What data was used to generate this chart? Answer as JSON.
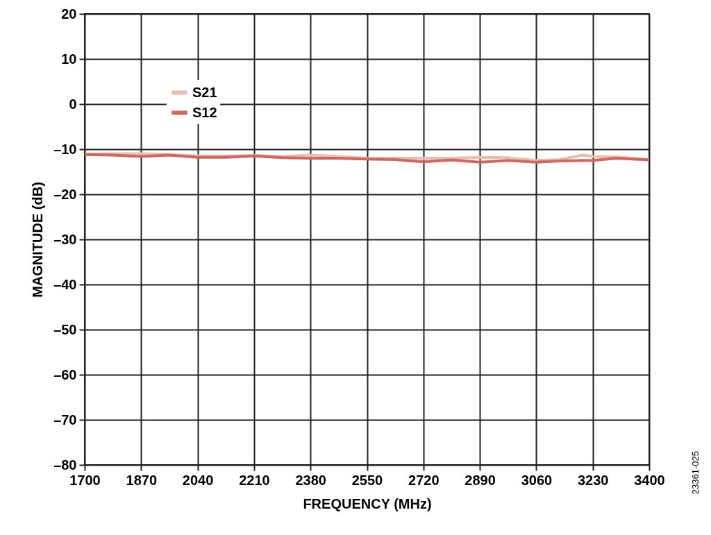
{
  "chart_data": {
    "type": "line",
    "xlabel": "FREQUENCY (MHz)",
    "ylabel": "MAGNITUDE (dB)",
    "x": [
      1700,
      1785,
      1870,
      1955,
      2040,
      2125,
      2210,
      2295,
      2380,
      2465,
      2550,
      2635,
      2720,
      2805,
      2890,
      2975,
      3060,
      3130,
      3200,
      3230,
      3300,
      3400
    ],
    "series": [
      {
        "name": "S21",
        "color": "#ebbcb0",
        "values": [
          -11.1,
          -11.0,
          -11.0,
          -11.2,
          -11.5,
          -11.5,
          -11.4,
          -11.6,
          -11.3,
          -11.6,
          -12.0,
          -12.0,
          -12.0,
          -12.0,
          -11.8,
          -11.9,
          -12.5,
          -12.3,
          -11.3,
          -11.6,
          -11.7,
          -12.3
        ]
      },
      {
        "name": "S12",
        "color": "#cc6860",
        "values": [
          -11.2,
          -11.3,
          -11.6,
          -11.3,
          -11.8,
          -11.8,
          -11.5,
          -11.9,
          -12.0,
          -12.0,
          -12.2,
          -12.3,
          -12.8,
          -12.4,
          -12.9,
          -12.5,
          -12.9,
          -12.6,
          -12.5,
          -12.5,
          -12.0,
          -12.4
        ]
      }
    ],
    "xlim": [
      1700,
      3400
    ],
    "xticks": [
      1700,
      1870,
      2040,
      2210,
      2380,
      2550,
      2720,
      2890,
      3060,
      3230,
      3400
    ],
    "ylim": [
      -80,
      20
    ],
    "yticks": [
      {
        "value": -80,
        "label": "–80"
      },
      {
        "value": -70,
        "label": "–70"
      },
      {
        "value": -60,
        "label": "–60"
      },
      {
        "value": -50,
        "label": "–50"
      },
      {
        "value": -40,
        "label": "–40"
      },
      {
        "value": -30,
        "label": "–30"
      },
      {
        "value": -20,
        "label": "–20"
      },
      {
        "value": -10,
        "label": "–10"
      },
      0,
      10,
      20
    ],
    "grid": true,
    "legend": "top left",
    "line_style": "solid",
    "marker": "none",
    "annotations": [
      "23361-025"
    ]
  }
}
